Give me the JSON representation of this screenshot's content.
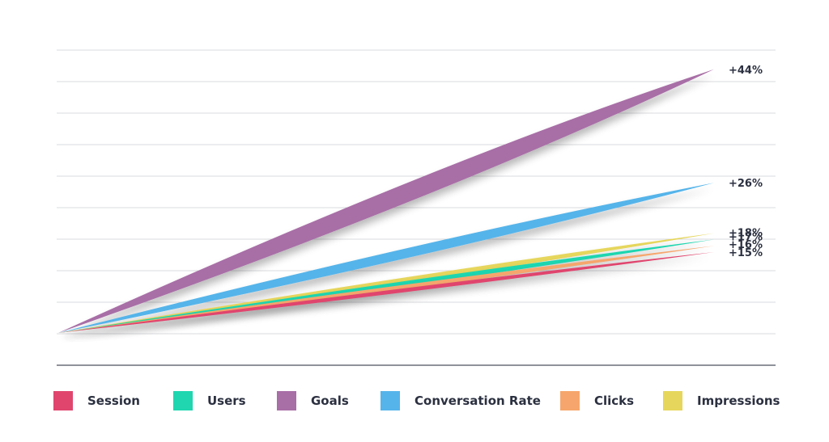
{
  "chart_data": {
    "type": "area",
    "title": "",
    "xlabel": "",
    "ylabel": "",
    "grid": true,
    "legend_placement": "bottom",
    "series": [
      {
        "name": "Goals",
        "value": 44,
        "label": "+44%",
        "color": "#a86ea6"
      },
      {
        "name": "Conversation Rate",
        "value": 26,
        "label": "+26%",
        "color": "#55b4ea"
      },
      {
        "name": "Impressions",
        "value": 18,
        "label": "+18%",
        "color": "#e6d65b"
      },
      {
        "name": "Users",
        "value": 17,
        "label": "+17%",
        "color": "#1fd6b0"
      },
      {
        "name": "Clicks",
        "value": 16,
        "label": "+16%",
        "color": "#f6a66c"
      },
      {
        "name": "Session",
        "value": 15,
        "label": "+15%",
        "color": "#e0456e"
      }
    ],
    "legend": [
      {
        "name": "Session",
        "color": "#e0456e"
      },
      {
        "name": "Users",
        "color": "#1fd6b0"
      },
      {
        "name": "Goals",
        "color": "#a86ea6"
      },
      {
        "name": "Conversation Rate",
        "color": "#55b4ea"
      },
      {
        "name": "Clicks",
        "color": "#f6a66c"
      },
      {
        "name": "Impressions",
        "color": "#e6d65b"
      }
    ]
  }
}
